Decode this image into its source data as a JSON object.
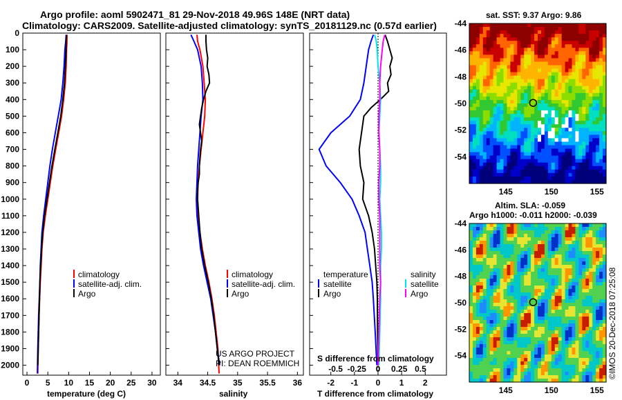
{
  "header": {
    "line1": "Argo profile: aoml 5902471_81 29-Nov-2018 49.96S 148E (NRT data)",
    "line2": "Climatology: CARS2009. Satellite-adjusted climatology: synTS_20181129.nc (0.57d earlier)"
  },
  "colors": {
    "climatology": "#ff0000",
    "satellite": "#0000ff",
    "argo": "#000000",
    "sat_salinity": "#00e5e5",
    "argo_salinity": "#ff00ff"
  },
  "credit": {
    "project": "US ARGO PROJECT",
    "pi": "PI: DEAN ROEMMICH",
    "imos": "©IMOS 20-Dec-2018 07:25:08"
  },
  "chart_data": [
    {
      "id": "temperature",
      "type": "line",
      "xlabel": "temperature (deg C)",
      "ylabel": "",
      "xlim": [
        -1,
        32
      ],
      "ylim": [
        2060,
        0
      ],
      "xticks": [
        0,
        5,
        10,
        15,
        20,
        25,
        30
      ],
      "xtick_labels": [
        "0",
        "5",
        "10",
        "15",
        "20",
        "25",
        "30"
      ],
      "yticks": [
        0,
        100,
        200,
        300,
        400,
        500,
        600,
        700,
        800,
        900,
        1000,
        1100,
        1200,
        1300,
        1400,
        1500,
        1600,
        1700,
        1800,
        1900,
        2000
      ],
      "ytick_labels": [
        "0",
        "100",
        "200",
        "300",
        "400",
        "500",
        "600",
        "700",
        "800",
        "900",
        "1000",
        "1100",
        "1200",
        "1300",
        "1400",
        "1500",
        "1600",
        "1700",
        "1800",
        "1900",
        "2000"
      ],
      "legend": [
        "climatology",
        "satellite-adj. clim.",
        "Argo"
      ],
      "series": [
        {
          "name": "climatology",
          "color": "#ff0000",
          "depth": [
            10,
            50,
            100,
            200,
            300,
            400,
            500,
            600,
            700,
            800,
            900,
            1000,
            1100,
            1200,
            1300,
            1400,
            1500,
            1700,
            1900,
            2050
          ],
          "values": [
            9.6,
            9.6,
            9.5,
            9.4,
            9.2,
            8.8,
            8.3,
            7.6,
            6.9,
            6.2,
            5.6,
            5.0,
            4.4,
            3.9,
            3.6,
            3.4,
            3.2,
            2.9,
            2.7,
            2.6
          ]
        },
        {
          "name": "satellite-adj. clim.",
          "color": "#0000ff",
          "depth": [
            10,
            50,
            100,
            200,
            300,
            400,
            500,
            600,
            700,
            800,
            900,
            1000,
            1100,
            1200,
            1300,
            1400,
            1500,
            1700,
            1900,
            2050
          ],
          "values": [
            9.4,
            9.3,
            9.1,
            8.9,
            8.6,
            8.2,
            7.5,
            6.8,
            6.1,
            5.5,
            5.0,
            4.5,
            4.0,
            3.6,
            3.4,
            3.2,
            3.1,
            2.8,
            2.6,
            2.5
          ]
        },
        {
          "name": "Argo",
          "color": "#000000",
          "depth": [
            10,
            50,
            100,
            200,
            300,
            400,
            500,
            600,
            700,
            800,
            900,
            1000,
            1100,
            1200,
            1300,
            1400,
            1500,
            1700,
            1900,
            2000
          ],
          "values": [
            9.5,
            9.4,
            9.4,
            9.2,
            9.0,
            8.6,
            8.1,
            7.4,
            6.7,
            6.0,
            5.4,
            4.8,
            4.2,
            3.8,
            3.5,
            3.3,
            3.1,
            2.9,
            2.7,
            2.6
          ]
        }
      ]
    },
    {
      "id": "salinity",
      "type": "line",
      "xlabel": "salinity",
      "xlim": [
        33.8,
        36.1
      ],
      "ylim": [
        2060,
        0
      ],
      "xticks": [
        34,
        34.5,
        35,
        35.5,
        36
      ],
      "xtick_labels": [
        "34",
        "34.5",
        "35",
        "35.5",
        "36"
      ],
      "legend": [
        "climatology",
        "satellite-adj. clim.",
        "Argo"
      ],
      "series": [
        {
          "name": "climatology",
          "color": "#ff0000",
          "depth": [
            10,
            50,
            100,
            200,
            300,
            400,
            500,
            600,
            700,
            800,
            900,
            1000,
            1100,
            1200,
            1300,
            1400,
            1500,
            1600,
            1700,
            1800,
            1900,
            2050
          ],
          "values": [
            34.32,
            34.33,
            34.37,
            34.42,
            34.44,
            34.46,
            34.45,
            34.42,
            34.39,
            34.36,
            34.34,
            34.33,
            34.34,
            34.37,
            34.41,
            34.46,
            34.52,
            34.57,
            34.61,
            34.64,
            34.67,
            34.69
          ]
        },
        {
          "name": "satellite-adj. clim.",
          "color": "#0000ff",
          "depth": [
            10,
            50,
            100,
            200,
            300,
            400,
            500,
            600,
            700,
            800,
            900,
            1000,
            1100,
            1200,
            1300,
            1400,
            1500,
            1600,
            1700,
            1800,
            1900,
            2000
          ],
          "values": [
            34.22,
            34.27,
            34.33,
            34.39,
            34.41,
            34.42,
            34.39,
            34.37,
            34.35,
            34.33,
            34.32,
            34.31,
            34.32,
            34.35,
            34.38,
            34.43,
            34.49,
            34.55,
            34.59,
            34.63,
            34.66,
            34.7
          ]
        },
        {
          "name": "Argo",
          "color": "#000000",
          "depth": [
            10,
            50,
            100,
            150,
            200,
            250,
            300,
            350,
            400,
            450,
            500,
            550,
            600,
            650,
            700,
            750,
            800,
            850,
            900,
            950,
            1000,
            1100,
            1200,
            1300,
            1400,
            1500,
            1600,
            1700,
            1800,
            1900,
            2000
          ],
          "values": [
            34.47,
            34.47,
            34.48,
            34.5,
            34.49,
            34.52,
            34.53,
            34.47,
            34.43,
            34.4,
            34.38,
            34.36,
            34.38,
            34.4,
            34.38,
            34.37,
            34.36,
            34.36,
            34.34,
            34.33,
            34.33,
            34.35,
            34.37,
            34.4,
            34.45,
            34.51,
            34.56,
            34.6,
            34.63,
            34.66,
            34.69
          ]
        }
      ]
    },
    {
      "id": "differences",
      "type": "line",
      "xlabel": "T difference from climatology",
      "top_label": "S difference from climatology",
      "xlim": [
        -2.9,
        2.9
      ],
      "ylim": [
        2060,
        0
      ],
      "xticks": [
        -2,
        -1,
        0,
        1,
        2
      ],
      "xtick_labels": [
        "-2",
        "-1",
        "0",
        "1",
        "2"
      ],
      "top_ticks": [
        -0.5,
        -0.25,
        0,
        0.25,
        0.5
      ],
      "top_tick_labels": [
        "-0.5",
        "-0.25",
        "0",
        "0.25",
        "0.5"
      ],
      "top_scale": 3.6,
      "legend": {
        "left_title": "temperature",
        "right_title": "salinity",
        "left": [
          "satellite",
          "Argo"
        ],
        "right": [
          "satellite",
          "Argo"
        ]
      },
      "series": [
        {
          "name": "temperature satellite",
          "axis": "T",
          "color": "#0000ff",
          "depth": [
            10,
            50,
            100,
            200,
            300,
            400,
            500,
            600,
            700,
            800,
            900,
            1000,
            1100,
            1200,
            1300,
            1400,
            1500,
            1600,
            1800,
            2000
          ],
          "values": [
            -0.2,
            -0.3,
            -0.4,
            -0.5,
            -0.6,
            -0.75,
            -1.2,
            -2.0,
            -2.5,
            -2.2,
            -1.6,
            -1.1,
            -0.8,
            -0.55,
            -0.45,
            -0.35,
            -0.25,
            -0.2,
            -0.12,
            -0.05
          ]
        },
        {
          "name": "temperature Argo",
          "color": "#000000",
          "axis": "T",
          "depth": [
            10,
            50,
            100,
            150,
            200,
            250,
            300,
            350,
            400,
            450,
            500,
            600,
            700,
            800,
            900,
            1000,
            1100,
            1200,
            1300,
            1400,
            1500,
            1600,
            1800,
            2000
          ],
          "values": [
            0.3,
            0.4,
            0.5,
            0.6,
            0.5,
            0.55,
            0.4,
            0.45,
            0.1,
            -0.3,
            -0.6,
            -0.7,
            -0.8,
            -0.75,
            -0.6,
            -0.65,
            -0.4,
            -0.25,
            -0.15,
            -0.1,
            -0.05,
            -0.03,
            -0.02,
            0.0
          ]
        },
        {
          "name": "salinity satellite",
          "color": "#00e5e5",
          "axis": "S",
          "depth": [
            10,
            50,
            100,
            200,
            300,
            400,
            500,
            600,
            700,
            800,
            900,
            1000,
            1100,
            1200,
            1300,
            1400,
            1500,
            1600,
            1800,
            2000
          ],
          "values": [
            -0.04,
            -0.02,
            -0.01,
            0.0,
            0.02,
            0.03,
            0.02,
            0.01,
            0.02,
            0.03,
            0.03,
            0.02,
            0.03,
            0.04,
            0.04,
            0.03,
            0.03,
            0.03,
            0.02,
            0.01
          ]
        },
        {
          "name": "salinity Argo",
          "color": "#ff00ff",
          "axis": "S",
          "depth": [
            10,
            50,
            100,
            200,
            300,
            400,
            500,
            600,
            700,
            800,
            900,
            1000,
            1100,
            1200,
            1300,
            1400,
            1500,
            1600,
            1800,
            2000
          ],
          "values": [
            0.08,
            0.06,
            0.05,
            0.03,
            0.02,
            0.02,
            0.01,
            0.01,
            0.02,
            0.02,
            0.01,
            0.01,
            0.02,
            0.02,
            0.02,
            0.02,
            0.03,
            0.02,
            0.01,
            0.0
          ]
        }
      ]
    },
    {
      "id": "sst_map",
      "type": "heatmap",
      "title": "sat. SST: 9.37 Argo: 9.86",
      "xlim": [
        141,
        156
      ],
      "ylim": [
        -56,
        -44
      ],
      "xticks": [
        145,
        150,
        155
      ],
      "xtick_labels": [
        "145",
        "150",
        "155"
      ],
      "yticks": [
        -44,
        -46,
        -48,
        -50,
        -52,
        -54
      ],
      "ytick_labels": [
        "-44",
        "-46",
        "-48",
        "-50",
        "-52",
        "-54"
      ],
      "marker": {
        "lon": 148,
        "lat": -49.96
      }
    },
    {
      "id": "sla_map",
      "type": "heatmap",
      "title_line1": "Altim. SLA: -0.059",
      "title_line2": "Argo h1000: -0.011 h2000: -0.039",
      "xlim": [
        141,
        156
      ],
      "ylim": [
        -56,
        -44
      ],
      "xticks": [
        145,
        150,
        155
      ],
      "xtick_labels": [
        "145",
        "150",
        "155"
      ],
      "yticks": [
        -44,
        -46,
        -48,
        -50,
        -52,
        -54
      ],
      "ytick_labels": [
        "-44",
        "-46",
        "-48",
        "-50",
        "-52",
        "-54"
      ],
      "marker": {
        "lon": 148,
        "lat": -49.96
      }
    }
  ]
}
